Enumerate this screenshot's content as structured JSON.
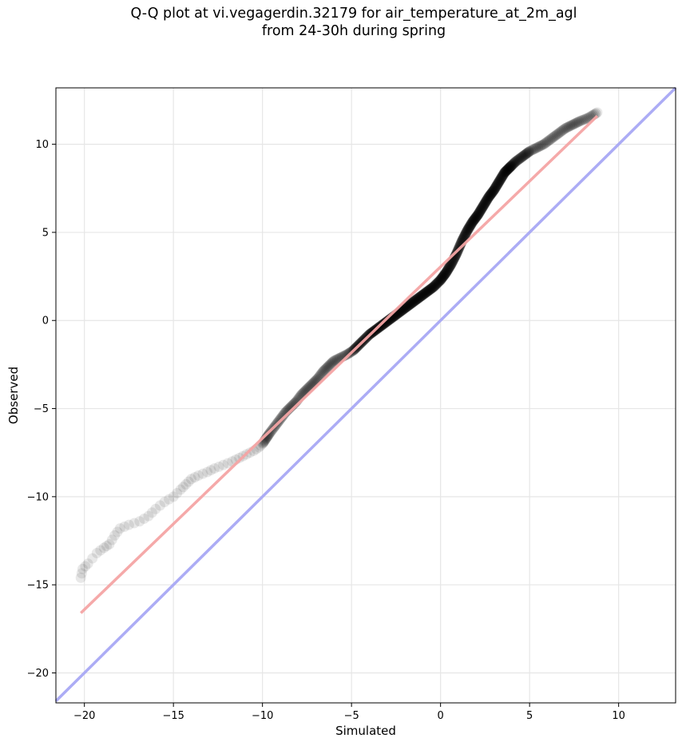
{
  "chart_data": {
    "type": "scatter",
    "title_lines": [
      "Q-Q plot at vi.vegagerdin.32179 for air_temperature_at_2m_agl",
      "from 24-30h during spring"
    ],
    "xlabel": "Simulated",
    "ylabel": "Observed",
    "xlim": [
      -21.6,
      13.2
    ],
    "ylim": [
      -21.7,
      13.2
    ],
    "x_ticks": [
      -20,
      -15,
      -10,
      -5,
      0,
      5,
      10
    ],
    "y_ticks": [
      -20,
      -15,
      -10,
      -5,
      0,
      5,
      10
    ],
    "x_tick_labels": [
      "−20",
      "−15",
      "−10",
      "−5",
      "0",
      "5",
      "10"
    ],
    "y_tick_labels": [
      "−20",
      "−15",
      "−10",
      "−5",
      "0",
      "5",
      "10"
    ],
    "grid": true,
    "quantile_curve": {
      "x": [
        -20.2,
        -20.1,
        -19.8,
        -19.3,
        -18.9,
        -18.6,
        -18.3,
        -18.0,
        -17.5,
        -16.9,
        -16.4,
        -16.0,
        -15.5,
        -15.0,
        -14.6,
        -14.3,
        -14.0,
        -13.6,
        -13.1,
        -12.7,
        -12.2,
        -11.7,
        -11.3,
        -10.9,
        -10.5,
        -10.2,
        -10.0,
        -9.8,
        -9.6,
        -9.3,
        -9.0,
        -8.7,
        -8.4,
        -8.1,
        -7.8,
        -7.5,
        -7.2,
        -6.9,
        -6.6,
        -6.3,
        -6.0,
        -5.6,
        -5.2,
        -4.9,
        -4.6,
        -4.3,
        -4.0,
        -3.6,
        -3.2,
        -2.8,
        -2.4,
        -2.0,
        -1.6,
        -1.2,
        -0.8,
        -0.4,
        0.0,
        0.3,
        0.6,
        0.9,
        1.2,
        1.5,
        1.8,
        2.1,
        2.4,
        2.7,
        3.0,
        3.3,
        3.6,
        3.9,
        4.2,
        4.6,
        5.0,
        5.4,
        5.8,
        6.2,
        6.6,
        7.0,
        7.4,
        7.8,
        8.3,
        8.8
      ],
      "y": [
        -14.6,
        -14.1,
        -13.8,
        -13.2,
        -12.9,
        -12.7,
        -12.2,
        -11.8,
        -11.6,
        -11.4,
        -11.1,
        -10.7,
        -10.3,
        -10.0,
        -9.6,
        -9.3,
        -9.0,
        -8.8,
        -8.6,
        -8.4,
        -8.2,
        -8.0,
        -7.8,
        -7.6,
        -7.4,
        -7.2,
        -7.0,
        -6.7,
        -6.4,
        -6.0,
        -5.6,
        -5.2,
        -4.9,
        -4.6,
        -4.2,
        -3.9,
        -3.6,
        -3.3,
        -2.9,
        -2.6,
        -2.3,
        -2.1,
        -1.9,
        -1.7,
        -1.4,
        -1.1,
        -0.8,
        -0.5,
        -0.2,
        0.1,
        0.4,
        0.7,
        1.0,
        1.3,
        1.6,
        1.9,
        2.3,
        2.7,
        3.2,
        3.8,
        4.5,
        5.1,
        5.6,
        6.0,
        6.5,
        7.0,
        7.4,
        7.9,
        8.4,
        8.7,
        9.0,
        9.3,
        9.6,
        9.8,
        10.0,
        10.3,
        10.6,
        10.9,
        11.1,
        11.3,
        11.5,
        11.8
      ]
    },
    "fit_line": {
      "x": [
        -20.2,
        8.8
      ],
      "y": [
        -16.6,
        11.6
      ],
      "color": "#f4a4a4"
    },
    "identity_line": {
      "x": [
        -21.6,
        13.2
      ],
      "y": [
        -21.6,
        13.2
      ],
      "color": "#a8a8f4"
    },
    "point_color": "#000000"
  }
}
